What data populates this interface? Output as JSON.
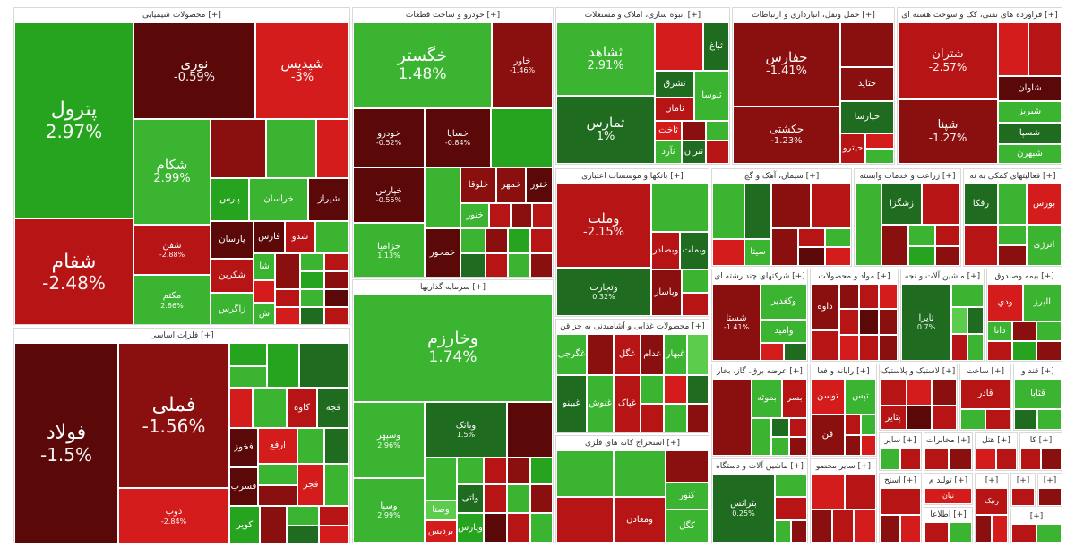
{
  "colors": {
    "strong_green": "#27a41f",
    "green": "#3bb531",
    "light_green": "#5ccc4c",
    "dark_green": "#1f6b1f",
    "strong_red": "#d41c1c",
    "red": "#b71515",
    "dark_red": "#8a0f0f",
    "deep_red": "#5a0808"
  },
  "sectors": [
    {
      "title": "محصولات شیمیایی [+]",
      "tiles": [
        {
          "name": "پترول",
          "pct": "2.97%"
        },
        {
          "name": "شفام",
          "pct": "-2.48%"
        },
        {
          "name": "نوری",
          "pct": "-0.59%"
        },
        {
          "name": "شیدیس",
          "pct": "-3%"
        },
        {
          "name": "شکام",
          "pct": "2.99%"
        },
        {
          "name": "شفن",
          "pct": "-2.88%"
        },
        {
          "name": "مکتم",
          "pct": "2.86%"
        },
        {
          "name": "پارس",
          "pct": ""
        },
        {
          "name": "خراسان",
          "pct": ""
        },
        {
          "name": "شیراز",
          "pct": ""
        },
        {
          "name": "پارسان",
          "pct": ""
        },
        {
          "name": "فارس",
          "pct": ""
        },
        {
          "name": "شدو",
          "pct": ""
        },
        {
          "name": "شکربن",
          "pct": ""
        },
        {
          "name": "زاگرس",
          "pct": ""
        },
        {
          "name": "شا",
          "pct": ""
        },
        {
          "name": "ش",
          "pct": ""
        }
      ]
    },
    {
      "title": "فلزات اساسی [+]",
      "tiles": [
        {
          "name": "فولاد",
          "pct": "-1.5%"
        },
        {
          "name": "فملی",
          "pct": "-1.56%"
        },
        {
          "name": "ذوب",
          "pct": "-2.84%"
        },
        {
          "name": "کاوه",
          "pct": ""
        },
        {
          "name": "فخوز",
          "pct": ""
        },
        {
          "name": "ارفع",
          "pct": ""
        },
        {
          "name": "فجر",
          "pct": ""
        },
        {
          "name": "فسرب",
          "pct": ""
        },
        {
          "name": "کویر",
          "pct": ""
        },
        {
          "name": "فجه",
          "pct": ""
        }
      ]
    },
    {
      "title": "خودرو و ساخت قطعات [+]",
      "tiles": [
        {
          "name": "خگستر",
          "pct": "1.48%"
        },
        {
          "name": "خاور",
          "pct": "-1.46%"
        },
        {
          "name": "خودرو",
          "pct": "-0.52%"
        },
        {
          "name": "خساپا",
          "pct": "-0.84%"
        },
        {
          "name": "خپارس",
          "pct": "-0.55%"
        },
        {
          "name": "خزامیا",
          "pct": "1.13%"
        },
        {
          "name": "خلوقا",
          "pct": ""
        },
        {
          "name": "خمهر",
          "pct": ""
        },
        {
          "name": "خمحور",
          "pct": ""
        },
        {
          "name": "ختور",
          "pct": ""
        },
        {
          "name": "خنور",
          "pct": ""
        }
      ]
    },
    {
      "title": "سرمایه گذاریها [+]",
      "tiles": [
        {
          "name": "وخارزم",
          "pct": "1.74%"
        },
        {
          "name": "وسپهر",
          "pct": "2.96%"
        },
        {
          "name": "وبانک",
          "pct": "1.5%"
        },
        {
          "name": "وسپا",
          "pct": "2.99%"
        },
        {
          "name": "وصنا",
          "pct": ""
        },
        {
          "name": "بردیس",
          "pct": ""
        },
        {
          "name": "واتی",
          "pct": ""
        },
        {
          "name": "وپارس",
          "pct": ""
        }
      ]
    },
    {
      "title": "انبوه سازی، املاک و مستغلات [+]",
      "tiles": [
        {
          "name": "ثشاهد",
          "pct": "2.91%"
        },
        {
          "name": "ثمارس",
          "pct": "1%"
        },
        {
          "name": "ثباغ",
          "pct": ""
        },
        {
          "name": "ثشرق",
          "pct": ""
        },
        {
          "name": "ثنوسا",
          "pct": ""
        },
        {
          "name": "ثامان",
          "pct": ""
        },
        {
          "name": "ثتران",
          "pct": ""
        },
        {
          "name": "ثاخت",
          "pct": ""
        },
        {
          "name": "ثآرد",
          "pct": ""
        }
      ]
    },
    {
      "title": "حمل ونقل، انبارداری و ارتباطات [+]",
      "tiles": [
        {
          "name": "حفارس",
          "pct": "-1.41%"
        },
        {
          "name": "حکشتی",
          "pct": "-1.23%"
        },
        {
          "name": "حتاید",
          "pct": ""
        },
        {
          "name": "حپارسا",
          "pct": ""
        },
        {
          "name": "حپترو",
          "pct": ""
        }
      ]
    },
    {
      "title": "فراورده های نفتی، کک و سوخت هسته ای [+]",
      "tiles": [
        {
          "name": "شتران",
          "pct": "-2.57%"
        },
        {
          "name": "شپنا",
          "pct": "-1.27%"
        },
        {
          "name": "شاوان",
          "pct": ""
        },
        {
          "name": "شبریز",
          "pct": ""
        },
        {
          "name": "شسپا",
          "pct": ""
        },
        {
          "name": "شبهرن",
          "pct": ""
        }
      ]
    },
    {
      "title": "بانکها و موسسات اعتباری [+]",
      "tiles": [
        {
          "name": "وملت",
          "pct": "-2.15%"
        },
        {
          "name": "وتجارت",
          "pct": "0.32%"
        },
        {
          "name": "وبصادر",
          "pct": ""
        },
        {
          "name": "وپاسار",
          "pct": ""
        },
        {
          "name": "وبملت",
          "pct": ""
        }
      ]
    },
    {
      "title": "محصولات غذایی و آشامیدنی به جز قن [+]",
      "tiles": [
        {
          "name": "غگل",
          "pct": ""
        },
        {
          "name": "غپاک",
          "pct": ""
        },
        {
          "name": "غنوش",
          "pct": ""
        },
        {
          "name": "غبینو",
          "pct": ""
        },
        {
          "name": "غگرجی",
          "pct": ""
        },
        {
          "name": "غدام",
          "pct": ""
        },
        {
          "name": "غبهار",
          "pct": ""
        }
      ]
    },
    {
      "title": "استخراج کانه های فلزی [+]",
      "tiles": [
        {
          "name": "کگل",
          "pct": ""
        },
        {
          "name": "کچاد",
          "pct": ""
        },
        {
          "name": "ومعادن",
          "pct": ""
        },
        {
          "name": "کنور",
          "pct": ""
        }
      ]
    },
    {
      "title": "سیمان، آهک و گچ [+]",
      "tiles": [
        {
          "name": "سیتا",
          "pct": ""
        },
        {
          "name": "سفار",
          "pct": ""
        },
        {
          "name": "ساروم",
          "pct": ""
        }
      ]
    },
    {
      "title": "زراعت و خدمات وابسته [+]",
      "tiles": [
        {
          "name": "زشگزا",
          "pct": ""
        },
        {
          "name": "زماهان",
          "pct": ""
        }
      ]
    },
    {
      "title": "فعالیتهای کمکی به نه [+]",
      "tiles": [
        {
          "name": "رفکا",
          "pct": ""
        },
        {
          "name": "بورس",
          "pct": ""
        },
        {
          "name": "انرژی",
          "pct": ""
        }
      ]
    },
    {
      "title": "شرکتهای چند رشته ای [+]",
      "tiles": [
        {
          "name": "وکغدیر",
          "pct": ""
        },
        {
          "name": "وامید",
          "pct": ""
        },
        {
          "name": "شستا",
          "pct": "-1.41%"
        }
      ]
    },
    {
      "title": "مواد و محصولات [+]",
      "tiles": [
        {
          "name": "داوه",
          "pct": ""
        },
        {
          "name": "دسبحا",
          "pct": ""
        }
      ]
    },
    {
      "title": "ماشین آلات و تجه [+]",
      "tiles": [
        {
          "name": "تایرا",
          "pct": "0.7%"
        },
        {
          "name": "تکشا",
          "pct": ""
        }
      ]
    },
    {
      "title": "بیمه وصندوق [+]",
      "tiles": [
        {
          "name": "ودي",
          "pct": ""
        },
        {
          "name": "البرز",
          "pct": ""
        },
        {
          "name": "دانا",
          "pct": ""
        }
      ]
    },
    {
      "title": "عرضه برق، گاز، بخار [+]",
      "tiles": [
        {
          "name": "بموثه",
          "pct": ""
        },
        {
          "name": "بسر",
          "pct": ""
        }
      ]
    },
    {
      "title": "رایانه و فعا [+]",
      "tiles": [
        {
          "name": "توسن",
          "pct": ""
        },
        {
          "name": "تپس",
          "pct": ""
        },
        {
          "name": "فن",
          "pct": ""
        }
      ]
    },
    {
      "title": "لاستیک و پلاستیک [+]",
      "tiles": [
        {
          "name": "پتایر",
          "pct": ""
        }
      ]
    },
    {
      "title": "ساخت [+]",
      "tiles": [
        {
          "name": "قادر",
          "pct": ""
        }
      ]
    },
    {
      "title": "قند و [+]",
      "tiles": [
        {
          "name": "قثابا",
          "pct": ""
        }
      ]
    },
    {
      "title": "ماشین آلات و دستگاه [+]",
      "tiles": [
        {
          "name": "بترانس",
          "pct": "0.25%"
        }
      ]
    },
    {
      "title": "سایر محصو [+]",
      "tiles": []
    },
    {
      "title": "سایر [+]",
      "tiles": []
    },
    {
      "title": "مخابرات [+]",
      "tiles": []
    },
    {
      "title": "هتل [+]",
      "tiles": []
    },
    {
      "title": "کا [+]",
      "tiles": []
    },
    {
      "title": "استخ [+]",
      "tiles": []
    },
    {
      "title": "تولید م [+]",
      "tiles": [
        {
          "name": "نیان",
          "pct": ""
        }
      ]
    },
    {
      "title": "اطلاعا [+]",
      "tiles": []
    },
    {
      "title": "[+]",
      "tiles": [
        {
          "name": "رتیک",
          "pct": ""
        }
      ]
    },
    {
      "title": "[+]",
      "tiles": []
    },
    {
      "title": "[+]",
      "tiles": []
    },
    {
      "title": "[+]",
      "tiles": []
    }
  ]
}
